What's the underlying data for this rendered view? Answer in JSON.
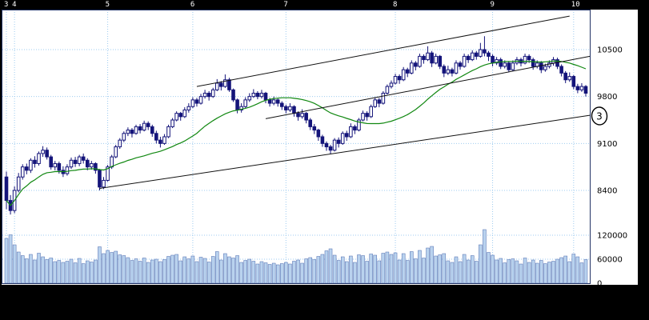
{
  "colors": {
    "background": "#000000",
    "panel": "#ffffff",
    "grid": "#9ecbf0",
    "candle": "#14147a",
    "candle_up_fill": "#ffffff",
    "volume_fill": "#b9d2ee",
    "volume_stroke": "#4a69ad",
    "ma_line": "#118811",
    "trendline": "#111111",
    "axis_text": "#000000",
    "month_text": "#ffffff"
  },
  "top_axis": {
    "months": [
      {
        "label": "3",
        "index": 0
      },
      {
        "label": "4",
        "index": 2
      },
      {
        "label": "5",
        "index": 25
      },
      {
        "label": "6",
        "index": 46
      },
      {
        "label": "7",
        "index": 69
      },
      {
        "label": "8",
        "index": 96
      },
      {
        "label": "9",
        "index": 120
      },
      {
        "label": "10",
        "index": 140
      }
    ]
  },
  "chart_data": {
    "type": "candlestick+volume",
    "title": "",
    "x_axis": {
      "unit": "month",
      "tick_labels": [
        "3",
        "4",
        "5",
        "6",
        "7",
        "8",
        "9",
        "10"
      ]
    },
    "price_axis": {
      "ticks": [
        10500,
        9800,
        9100,
        8400
      ],
      "range": [
        7870,
        11100
      ]
    },
    "volume_axis": {
      "ticks": [
        120000,
        60000,
        0
      ],
      "range": [
        0,
        140000
      ]
    },
    "legend": [],
    "moving_average": {
      "window": 25
    },
    "trendlines": [
      {
        "from_index": 23,
        "from_price": 8430,
        "to_index": 144,
        "to_price": 9520
      },
      {
        "from_index": 64,
        "from_price": 9470,
        "to_index": 144,
        "to_price": 10400
      },
      {
        "from_index": 47,
        "from_price": 9950,
        "to_index": 139,
        "to_price": 11000
      }
    ],
    "annotation": {
      "label": "3",
      "price": 9510
    },
    "candles_format": [
      "open",
      "high",
      "low",
      "close",
      "volume"
    ],
    "candles": [
      [
        8600,
        8680,
        8120,
        8250,
        112000
      ],
      [
        8250,
        8330,
        8040,
        8100,
        121000
      ],
      [
        8100,
        8460,
        8060,
        8400,
        96000
      ],
      [
        8400,
        8660,
        8370,
        8600,
        78000
      ],
      [
        8600,
        8790,
        8560,
        8750,
        69000
      ],
      [
        8750,
        8800,
        8640,
        8700,
        61000
      ],
      [
        8700,
        8880,
        8660,
        8850,
        72000
      ],
      [
        8850,
        8910,
        8740,
        8800,
        58000
      ],
      [
        8800,
        8980,
        8770,
        8950,
        75000
      ],
      [
        8950,
        9060,
        8900,
        9000,
        66000
      ],
      [
        9000,
        9040,
        8860,
        8900,
        59000
      ],
      [
        8900,
        8930,
        8710,
        8750,
        63000
      ],
      [
        8750,
        8840,
        8700,
        8800,
        54000
      ],
      [
        8800,
        8830,
        8650,
        8700,
        57000
      ],
      [
        8700,
        8760,
        8600,
        8650,
        52000
      ],
      [
        8650,
        8790,
        8620,
        8750,
        55000
      ],
      [
        8750,
        8890,
        8720,
        8850,
        60000
      ],
      [
        8850,
        8900,
        8750,
        8800,
        51000
      ],
      [
        8800,
        8930,
        8760,
        8900,
        62000
      ],
      [
        8900,
        8950,
        8800,
        8850,
        49000
      ],
      [
        8850,
        8880,
        8700,
        8750,
        56000
      ],
      [
        8750,
        8840,
        8710,
        8800,
        53000
      ],
      [
        8800,
        8820,
        8650,
        8700,
        58000
      ],
      [
        8700,
        8720,
        8400,
        8450,
        91000
      ],
      [
        8450,
        8600,
        8420,
        8550,
        74000
      ],
      [
        8550,
        8780,
        8530,
        8750,
        82000
      ],
      [
        8750,
        8930,
        8720,
        8900,
        77000
      ],
      [
        8900,
        9080,
        8880,
        9050,
        80000
      ],
      [
        9050,
        9180,
        9020,
        9150,
        71000
      ],
      [
        9150,
        9280,
        9120,
        9250,
        69000
      ],
      [
        9250,
        9340,
        9210,
        9300,
        64000
      ],
      [
        9300,
        9330,
        9190,
        9250,
        57000
      ],
      [
        9250,
        9380,
        9230,
        9350,
        61000
      ],
      [
        9350,
        9390,
        9250,
        9300,
        55000
      ],
      [
        9300,
        9440,
        9280,
        9400,
        63000
      ],
      [
        9400,
        9430,
        9300,
        9350,
        52000
      ],
      [
        9350,
        9380,
        9200,
        9250,
        58000
      ],
      [
        9250,
        9290,
        9100,
        9150,
        60000
      ],
      [
        9150,
        9200,
        9040,
        9100,
        54000
      ],
      [
        9100,
        9240,
        9080,
        9200,
        59000
      ],
      [
        9200,
        9380,
        9180,
        9350,
        67000
      ],
      [
        9350,
        9480,
        9330,
        9450,
        70000
      ],
      [
        9450,
        9580,
        9430,
        9550,
        72000
      ],
      [
        9550,
        9570,
        9440,
        9500,
        56000
      ],
      [
        9500,
        9640,
        9480,
        9600,
        66000
      ],
      [
        9600,
        9700,
        9560,
        9650,
        61000
      ],
      [
        9650,
        9790,
        9630,
        9750,
        68000
      ],
      [
        9750,
        9780,
        9650,
        9700,
        54000
      ],
      [
        9700,
        9840,
        9680,
        9800,
        65000
      ],
      [
        9800,
        9900,
        9770,
        9850,
        62000
      ],
      [
        9850,
        9880,
        9740,
        9800,
        53000
      ],
      [
        9800,
        9930,
        9780,
        9900,
        67000
      ],
      [
        9900,
        10060,
        9880,
        10000,
        79000
      ],
      [
        10000,
        10030,
        9890,
        9950,
        58000
      ],
      [
        9950,
        10130,
        9930,
        10050,
        74000
      ],
      [
        10050,
        10080,
        9870,
        9900,
        66000
      ],
      [
        9900,
        9920,
        9720,
        9750,
        63000
      ],
      [
        9750,
        9770,
        9550,
        9600,
        69000
      ],
      [
        9600,
        9700,
        9560,
        9650,
        52000
      ],
      [
        9650,
        9790,
        9630,
        9750,
        57000
      ],
      [
        9750,
        9850,
        9720,
        9800,
        60000
      ],
      [
        9800,
        9910,
        9780,
        9850,
        55000
      ],
      [
        9850,
        9880,
        9760,
        9800,
        48000
      ],
      [
        9800,
        9900,
        9770,
        9850,
        54000
      ],
      [
        9850,
        9870,
        9700,
        9750,
        51000
      ],
      [
        9750,
        9780,
        9650,
        9700,
        47000
      ],
      [
        9700,
        9800,
        9670,
        9750,
        50000
      ],
      [
        9750,
        9770,
        9650,
        9700,
        46000
      ],
      [
        9700,
        9730,
        9600,
        9650,
        49000
      ],
      [
        9650,
        9680,
        9550,
        9600,
        52000
      ],
      [
        9600,
        9700,
        9570,
        9650,
        48000
      ],
      [
        9650,
        9670,
        9500,
        9550,
        55000
      ],
      [
        9550,
        9580,
        9440,
        9500,
        58000
      ],
      [
        9500,
        9610,
        9470,
        9550,
        50000
      ],
      [
        9550,
        9570,
        9400,
        9450,
        61000
      ],
      [
        9450,
        9480,
        9300,
        9350,
        64000
      ],
      [
        9350,
        9390,
        9240,
        9300,
        59000
      ],
      [
        9300,
        9320,
        9140,
        9200,
        67000
      ],
      [
        9200,
        9230,
        9050,
        9100,
        72000
      ],
      [
        9100,
        9130,
        8990,
        9050,
        81000
      ],
      [
        9050,
        9080,
        8940,
        9000,
        86000
      ],
      [
        9000,
        9180,
        8980,
        9150,
        70000
      ],
      [
        9150,
        9190,
        9040,
        9100,
        57000
      ],
      [
        9100,
        9280,
        9080,
        9250,
        66000
      ],
      [
        9250,
        9290,
        9140,
        9200,
        54000
      ],
      [
        9200,
        9400,
        9180,
        9350,
        68000
      ],
      [
        9350,
        9380,
        9240,
        9300,
        52000
      ],
      [
        9300,
        9480,
        9280,
        9450,
        71000
      ],
      [
        9450,
        9590,
        9430,
        9550,
        69000
      ],
      [
        9550,
        9580,
        9440,
        9500,
        55000
      ],
      [
        9500,
        9680,
        9480,
        9650,
        73000
      ],
      [
        9650,
        9790,
        9630,
        9750,
        70000
      ],
      [
        9750,
        9780,
        9640,
        9700,
        56000
      ],
      [
        9700,
        9880,
        9680,
        9850,
        75000
      ],
      [
        9850,
        9980,
        9830,
        9950,
        78000
      ],
      [
        9950,
        10040,
        9920,
        10000,
        72000
      ],
      [
        10000,
        10140,
        9980,
        10100,
        76000
      ],
      [
        10100,
        10130,
        9990,
        10050,
        58000
      ],
      [
        10050,
        10240,
        10030,
        10200,
        74000
      ],
      [
        10200,
        10230,
        10090,
        10150,
        57000
      ],
      [
        10150,
        10340,
        10130,
        10300,
        79000
      ],
      [
        10300,
        10330,
        10190,
        10250,
        61000
      ],
      [
        10250,
        10440,
        10230,
        10400,
        82000
      ],
      [
        10400,
        10430,
        10290,
        10350,
        63000
      ],
      [
        10350,
        10550,
        10330,
        10450,
        88000
      ],
      [
        10450,
        10480,
        10240,
        10300,
        92000
      ],
      [
        10300,
        10440,
        10280,
        10400,
        68000
      ],
      [
        10400,
        10420,
        10210,
        10250,
        71000
      ],
      [
        10250,
        10280,
        10090,
        10150,
        74000
      ],
      [
        10150,
        10260,
        10120,
        10200,
        56000
      ],
      [
        10200,
        10230,
        10100,
        10150,
        52000
      ],
      [
        10150,
        10340,
        10130,
        10300,
        66000
      ],
      [
        10300,
        10330,
        10200,
        10250,
        54000
      ],
      [
        10250,
        10440,
        10230,
        10400,
        72000
      ],
      [
        10400,
        10430,
        10300,
        10350,
        58000
      ],
      [
        10350,
        10490,
        10330,
        10450,
        69000
      ],
      [
        10450,
        10480,
        10350,
        10400,
        55000
      ],
      [
        10400,
        10600,
        10380,
        10500,
        96000
      ],
      [
        10500,
        10700,
        10400,
        10450,
        134000
      ],
      [
        10450,
        10480,
        10330,
        10400,
        77000
      ],
      [
        10400,
        10430,
        10250,
        10300,
        70000
      ],
      [
        10300,
        10390,
        10270,
        10350,
        58000
      ],
      [
        10350,
        10380,
        10210,
        10250,
        62000
      ],
      [
        10250,
        10340,
        10220,
        10300,
        51000
      ],
      [
        10300,
        10330,
        10160,
        10200,
        59000
      ],
      [
        10200,
        10340,
        10180,
        10300,
        61000
      ],
      [
        10300,
        10390,
        10270,
        10350,
        56000
      ],
      [
        10350,
        10380,
        10250,
        10300,
        48000
      ],
      [
        10300,
        10440,
        10280,
        10400,
        63000
      ],
      [
        10400,
        10430,
        10300,
        10350,
        52000
      ],
      [
        10350,
        10380,
        10200,
        10250,
        58000
      ],
      [
        10250,
        10340,
        10220,
        10300,
        50000
      ],
      [
        10300,
        10330,
        10150,
        10200,
        57000
      ],
      [
        10200,
        10290,
        10170,
        10250,
        49000
      ],
      [
        10250,
        10340,
        10220,
        10300,
        53000
      ],
      [
        10300,
        10390,
        10260,
        10350,
        55000
      ],
      [
        10350,
        10380,
        10210,
        10250,
        60000
      ],
      [
        10250,
        10280,
        10100,
        10150,
        64000
      ],
      [
        10150,
        10180,
        10000,
        10050,
        68000
      ],
      [
        10050,
        10160,
        10020,
        10100,
        54000
      ],
      [
        10100,
        10120,
        9910,
        9950,
        73000
      ],
      [
        9950,
        9990,
        9850,
        9900,
        66000
      ],
      [
        9900,
        10000,
        9870,
        9950,
        51000
      ],
      [
        9950,
        9970,
        9800,
        9850,
        59000
      ]
    ]
  }
}
